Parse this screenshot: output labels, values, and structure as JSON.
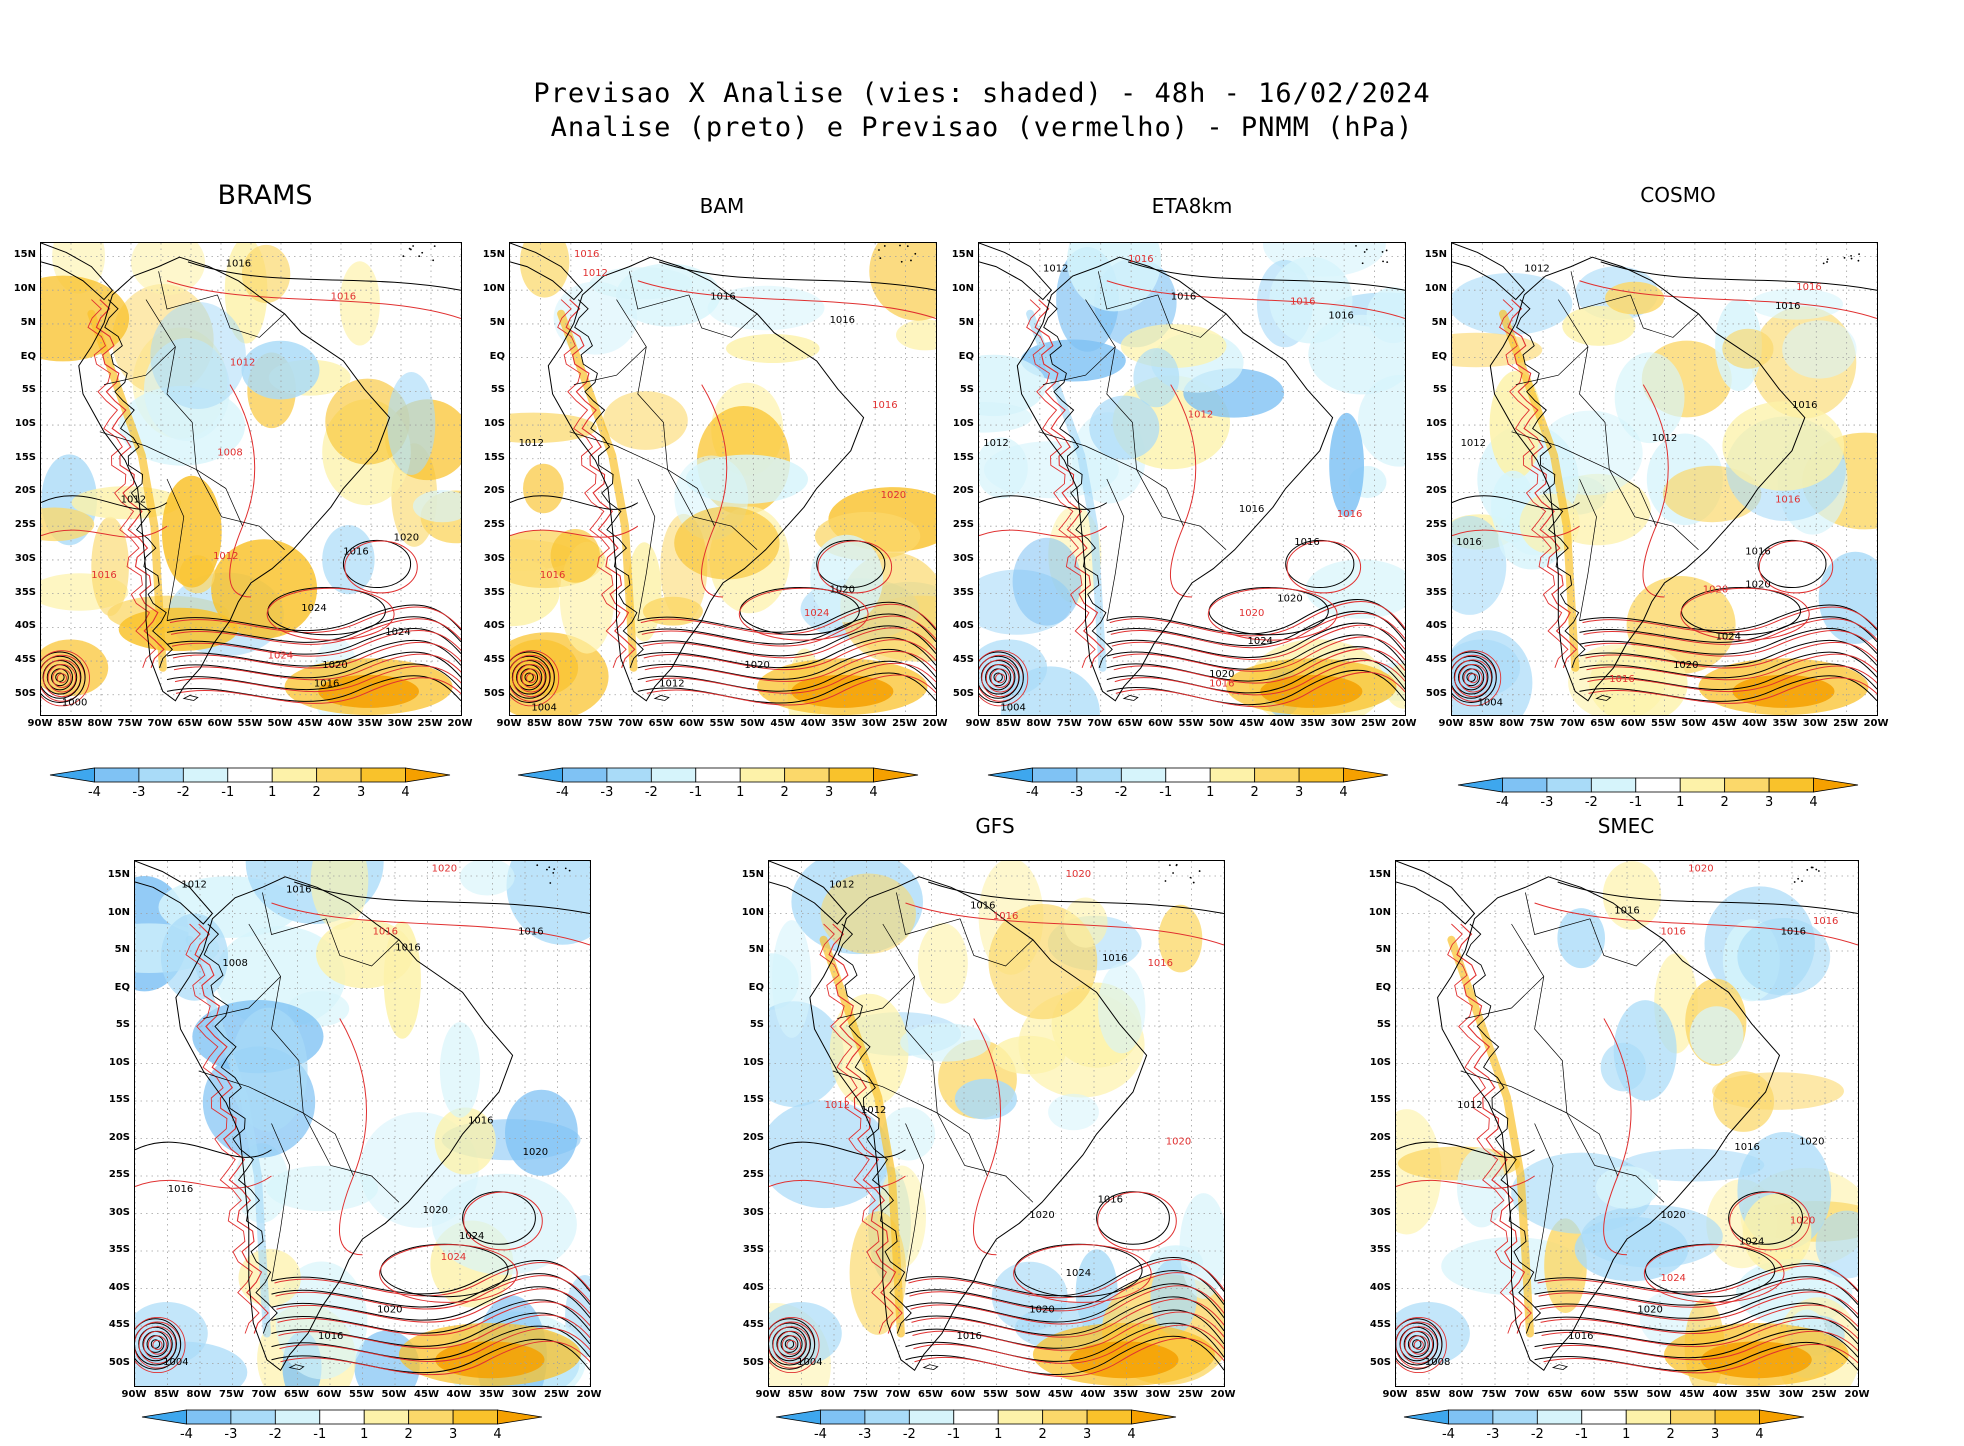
{
  "header": {
    "line1": "Previsao X Analise (vies: shaded) - 48h - 16/02/2024",
    "line2": "Analise (preto) e Previsao (vermelho) - PNMM (hPa)"
  },
  "axes": {
    "lat_labels": [
      "15N",
      "10N",
      "5N",
      "EQ",
      "5S",
      "10S",
      "15S",
      "20S",
      "25S",
      "30S",
      "35S",
      "40S",
      "45S",
      "50S"
    ],
    "lon_labels": [
      "90W",
      "85W",
      "80W",
      "75W",
      "70W",
      "65W",
      "60W",
      "55W",
      "50W",
      "45W",
      "40W",
      "35W",
      "30W",
      "25W",
      "20W"
    ]
  },
  "colorbar": {
    "labels": [
      "-4",
      "-3",
      "-2",
      "-1",
      "1",
      "2",
      "3",
      "4"
    ],
    "colors": [
      "#3ea7ee",
      "#7fc2f4",
      "#a9dbf8",
      "#d6f4fb",
      "#ffffff",
      "#fdf2a9",
      "#fbd86a",
      "#f9c22b",
      "#f5a000"
    ]
  },
  "legend_colors": {
    "analysis": "#000000",
    "forecast": "#e03030"
  },
  "isobar_values": {
    "black": [
      "1016",
      "1012",
      "1008",
      "1020",
      "1024",
      "1000",
      "1004"
    ],
    "red": [
      "1012",
      "1016",
      "1020",
      "1024",
      "1008",
      "1004"
    ]
  },
  "panels": [
    {
      "id": "brams",
      "title": "BRAMS",
      "bias": "warm",
      "labels": [
        {
          "t": "1016",
          "c": "k",
          "u": 0.47,
          "v": 0.05
        },
        {
          "t": "1016",
          "c": "r",
          "u": 0.72,
          "v": 0.12
        },
        {
          "t": "1012",
          "c": "r",
          "u": 0.48,
          "v": 0.26
        },
        {
          "t": "1008",
          "c": "r",
          "u": 0.45,
          "v": 0.45
        },
        {
          "t": "1012",
          "c": "k",
          "u": 0.22,
          "v": 0.55
        },
        {
          "t": "1016",
          "c": "k",
          "u": 0.75,
          "v": 0.66
        },
        {
          "t": "1020",
          "c": "k",
          "u": 0.87,
          "v": 0.63
        },
        {
          "t": "1012",
          "c": "r",
          "u": 0.44,
          "v": 0.67
        },
        {
          "t": "1016",
          "c": "r",
          "u": 0.15,
          "v": 0.71
        },
        {
          "t": "1024",
          "c": "k",
          "u": 0.65,
          "v": 0.78
        },
        {
          "t": "1024",
          "c": "k",
          "u": 0.85,
          "v": 0.83
        },
        {
          "t": "1024",
          "c": "r",
          "u": 0.57,
          "v": 0.88
        },
        {
          "t": "1020",
          "c": "k",
          "u": 0.7,
          "v": 0.9
        },
        {
          "t": "1016",
          "c": "k",
          "u": 0.68,
          "v": 0.94
        },
        {
          "t": "1000",
          "c": "k",
          "u": 0.08,
          "v": 0.98
        }
      ]
    },
    {
      "id": "bam",
      "title": "BAM",
      "bias": "warm",
      "labels": [
        {
          "t": "1016",
          "c": "r",
          "u": 0.18,
          "v": 0.03
        },
        {
          "t": "1012",
          "c": "r",
          "u": 0.2,
          "v": 0.07
        },
        {
          "t": "1016",
          "c": "k",
          "u": 0.5,
          "v": 0.12
        },
        {
          "t": "1016",
          "c": "k",
          "u": 0.78,
          "v": 0.17
        },
        {
          "t": "1012",
          "c": "k",
          "u": 0.05,
          "v": 0.43
        },
        {
          "t": "1016",
          "c": "r",
          "u": 0.88,
          "v": 0.35
        },
        {
          "t": "1020",
          "c": "r",
          "u": 0.9,
          "v": 0.54
        },
        {
          "t": "1016",
          "c": "r",
          "u": 0.1,
          "v": 0.71
        },
        {
          "t": "1020",
          "c": "k",
          "u": 0.78,
          "v": 0.74
        },
        {
          "t": "1024",
          "c": "r",
          "u": 0.72,
          "v": 0.79
        },
        {
          "t": "1020",
          "c": "k",
          "u": 0.58,
          "v": 0.9
        },
        {
          "t": "1012",
          "c": "k",
          "u": 0.38,
          "v": 0.94
        },
        {
          "t": "1004",
          "c": "k",
          "u": 0.08,
          "v": 0.99
        }
      ]
    },
    {
      "id": "eta8km",
      "title": "ETA8km",
      "bias": "cool",
      "labels": [
        {
          "t": "1012",
          "c": "k",
          "u": 0.18,
          "v": 0.06
        },
        {
          "t": "1016",
          "c": "r",
          "u": 0.38,
          "v": 0.04
        },
        {
          "t": "1016",
          "c": "k",
          "u": 0.48,
          "v": 0.12
        },
        {
          "t": "1016",
          "c": "r",
          "u": 0.76,
          "v": 0.13
        },
        {
          "t": "1016",
          "c": "k",
          "u": 0.85,
          "v": 0.16
        },
        {
          "t": "1012",
          "c": "k",
          "u": 0.04,
          "v": 0.43
        },
        {
          "t": "1012",
          "c": "r",
          "u": 0.52,
          "v": 0.37
        },
        {
          "t": "1016",
          "c": "k",
          "u": 0.64,
          "v": 0.57
        },
        {
          "t": "1016",
          "c": "r",
          "u": 0.87,
          "v": 0.58
        },
        {
          "t": "1016",
          "c": "k",
          "u": 0.77,
          "v": 0.64
        },
        {
          "t": "1020",
          "c": "k",
          "u": 0.73,
          "v": 0.76
        },
        {
          "t": "1020",
          "c": "r",
          "u": 0.64,
          "v": 0.79
        },
        {
          "t": "1024",
          "c": "k",
          "u": 0.66,
          "v": 0.85
        },
        {
          "t": "1020",
          "c": "k",
          "u": 0.57,
          "v": 0.92
        },
        {
          "t": "1016",
          "c": "r",
          "u": 0.57,
          "v": 0.94
        },
        {
          "t": "1004",
          "c": "k",
          "u": 0.08,
          "v": 0.99
        }
      ]
    },
    {
      "id": "cosmo",
      "title": "COSMO",
      "bias": "mixed",
      "labels": [
        {
          "t": "1012",
          "c": "k",
          "u": 0.2,
          "v": 0.06
        },
        {
          "t": "1016",
          "c": "r",
          "u": 0.84,
          "v": 0.1
        },
        {
          "t": "1016",
          "c": "k",
          "u": 0.79,
          "v": 0.14
        },
        {
          "t": "1012",
          "c": "k",
          "u": 0.05,
          "v": 0.43
        },
        {
          "t": "1012",
          "c": "k",
          "u": 0.5,
          "v": 0.42
        },
        {
          "t": "1016",
          "c": "k",
          "u": 0.83,
          "v": 0.35
        },
        {
          "t": "1016",
          "c": "r",
          "u": 0.79,
          "v": 0.55
        },
        {
          "t": "1016",
          "c": "k",
          "u": 0.04,
          "v": 0.64
        },
        {
          "t": "1016",
          "c": "k",
          "u": 0.72,
          "v": 0.66
        },
        {
          "t": "1020",
          "c": "k",
          "u": 0.72,
          "v": 0.73
        },
        {
          "t": "1020",
          "c": "r",
          "u": 0.62,
          "v": 0.74
        },
        {
          "t": "1024",
          "c": "k",
          "u": 0.65,
          "v": 0.84
        },
        {
          "t": "1020",
          "c": "k",
          "u": 0.55,
          "v": 0.9
        },
        {
          "t": "1016",
          "c": "r",
          "u": 0.4,
          "v": 0.93
        },
        {
          "t": "1004",
          "c": "k",
          "u": 0.09,
          "v": 0.98
        }
      ]
    },
    {
      "id": "wrf",
      "title": "",
      "bias": "cool",
      "labels": [
        {
          "t": "1012",
          "c": "k",
          "u": 0.13,
          "v": 0.05
        },
        {
          "t": "1016",
          "c": "k",
          "u": 0.36,
          "v": 0.06
        },
        {
          "t": "1020",
          "c": "r",
          "u": 0.68,
          "v": 0.02
        },
        {
          "t": "1016",
          "c": "r",
          "u": 0.55,
          "v": 0.14
        },
        {
          "t": "1016",
          "c": "k",
          "u": 0.6,
          "v": 0.17
        },
        {
          "t": "1016",
          "c": "k",
          "u": 0.87,
          "v": 0.14
        },
        {
          "t": "1008",
          "c": "k",
          "u": 0.22,
          "v": 0.2
        },
        {
          "t": "1016",
          "c": "k",
          "u": 0.76,
          "v": 0.5
        },
        {
          "t": "1020",
          "c": "k",
          "u": 0.88,
          "v": 0.56
        },
        {
          "t": "1016",
          "c": "k",
          "u": 0.1,
          "v": 0.63
        },
        {
          "t": "1020",
          "c": "k",
          "u": 0.66,
          "v": 0.67
        },
        {
          "t": "1024",
          "c": "k",
          "u": 0.74,
          "v": 0.72
        },
        {
          "t": "1024",
          "c": "r",
          "u": 0.7,
          "v": 0.76
        },
        {
          "t": "1020",
          "c": "k",
          "u": 0.56,
          "v": 0.86
        },
        {
          "t": "1016",
          "c": "k",
          "u": 0.43,
          "v": 0.91
        },
        {
          "t": "1004",
          "c": "k",
          "u": 0.09,
          "v": 0.96
        }
      ]
    },
    {
      "id": "gfs",
      "title": "GFS",
      "bias": "mixed",
      "labels": [
        {
          "t": "1012",
          "c": "k",
          "u": 0.16,
          "v": 0.05
        },
        {
          "t": "1020",
          "c": "r",
          "u": 0.68,
          "v": 0.03
        },
        {
          "t": "1016",
          "c": "k",
          "u": 0.47,
          "v": 0.09
        },
        {
          "t": "1016",
          "c": "r",
          "u": 0.52,
          "v": 0.11
        },
        {
          "t": "1016",
          "c": "k",
          "u": 0.76,
          "v": 0.19
        },
        {
          "t": "1016",
          "c": "r",
          "u": 0.86,
          "v": 0.2
        },
        {
          "t": "1012",
          "c": "r",
          "u": 0.15,
          "v": 0.47
        },
        {
          "t": "1012",
          "c": "k",
          "u": 0.23,
          "v": 0.48
        },
        {
          "t": "1020",
          "c": "r",
          "u": 0.9,
          "v": 0.54
        },
        {
          "t": "1016",
          "c": "k",
          "u": 0.75,
          "v": 0.65
        },
        {
          "t": "1020",
          "c": "k",
          "u": 0.6,
          "v": 0.68
        },
        {
          "t": "1024",
          "c": "k",
          "u": 0.68,
          "v": 0.79
        },
        {
          "t": "1020",
          "c": "k",
          "u": 0.6,
          "v": 0.86
        },
        {
          "t": "1016",
          "c": "k",
          "u": 0.44,
          "v": 0.91
        },
        {
          "t": "1004",
          "c": "k",
          "u": 0.09,
          "v": 0.96
        }
      ]
    },
    {
      "id": "smec",
      "title": "SMEC",
      "bias": "mixed",
      "labels": [
        {
          "t": "1020",
          "c": "r",
          "u": 0.66,
          "v": 0.02
        },
        {
          "t": "1016",
          "c": "k",
          "u": 0.5,
          "v": 0.1
        },
        {
          "t": "1016",
          "c": "r",
          "u": 0.6,
          "v": 0.14
        },
        {
          "t": "1016",
          "c": "k",
          "u": 0.86,
          "v": 0.14
        },
        {
          "t": "1016",
          "c": "r",
          "u": 0.93,
          "v": 0.12
        },
        {
          "t": "1012",
          "c": "k",
          "u": 0.16,
          "v": 0.47
        },
        {
          "t": "1016",
          "c": "k",
          "u": 0.76,
          "v": 0.55
        },
        {
          "t": "1020",
          "c": "k",
          "u": 0.9,
          "v": 0.54
        },
        {
          "t": "1020",
          "c": "k",
          "u": 0.6,
          "v": 0.68
        },
        {
          "t": "1020",
          "c": "r",
          "u": 0.88,
          "v": 0.69
        },
        {
          "t": "1024",
          "c": "k",
          "u": 0.77,
          "v": 0.73
        },
        {
          "t": "1024",
          "c": "r",
          "u": 0.6,
          "v": 0.8
        },
        {
          "t": "1020",
          "c": "k",
          "u": 0.55,
          "v": 0.86
        },
        {
          "t": "1016",
          "c": "k",
          "u": 0.4,
          "v": 0.91
        },
        {
          "t": "1008",
          "c": "k",
          "u": 0.09,
          "v": 0.96
        }
      ]
    }
  ]
}
